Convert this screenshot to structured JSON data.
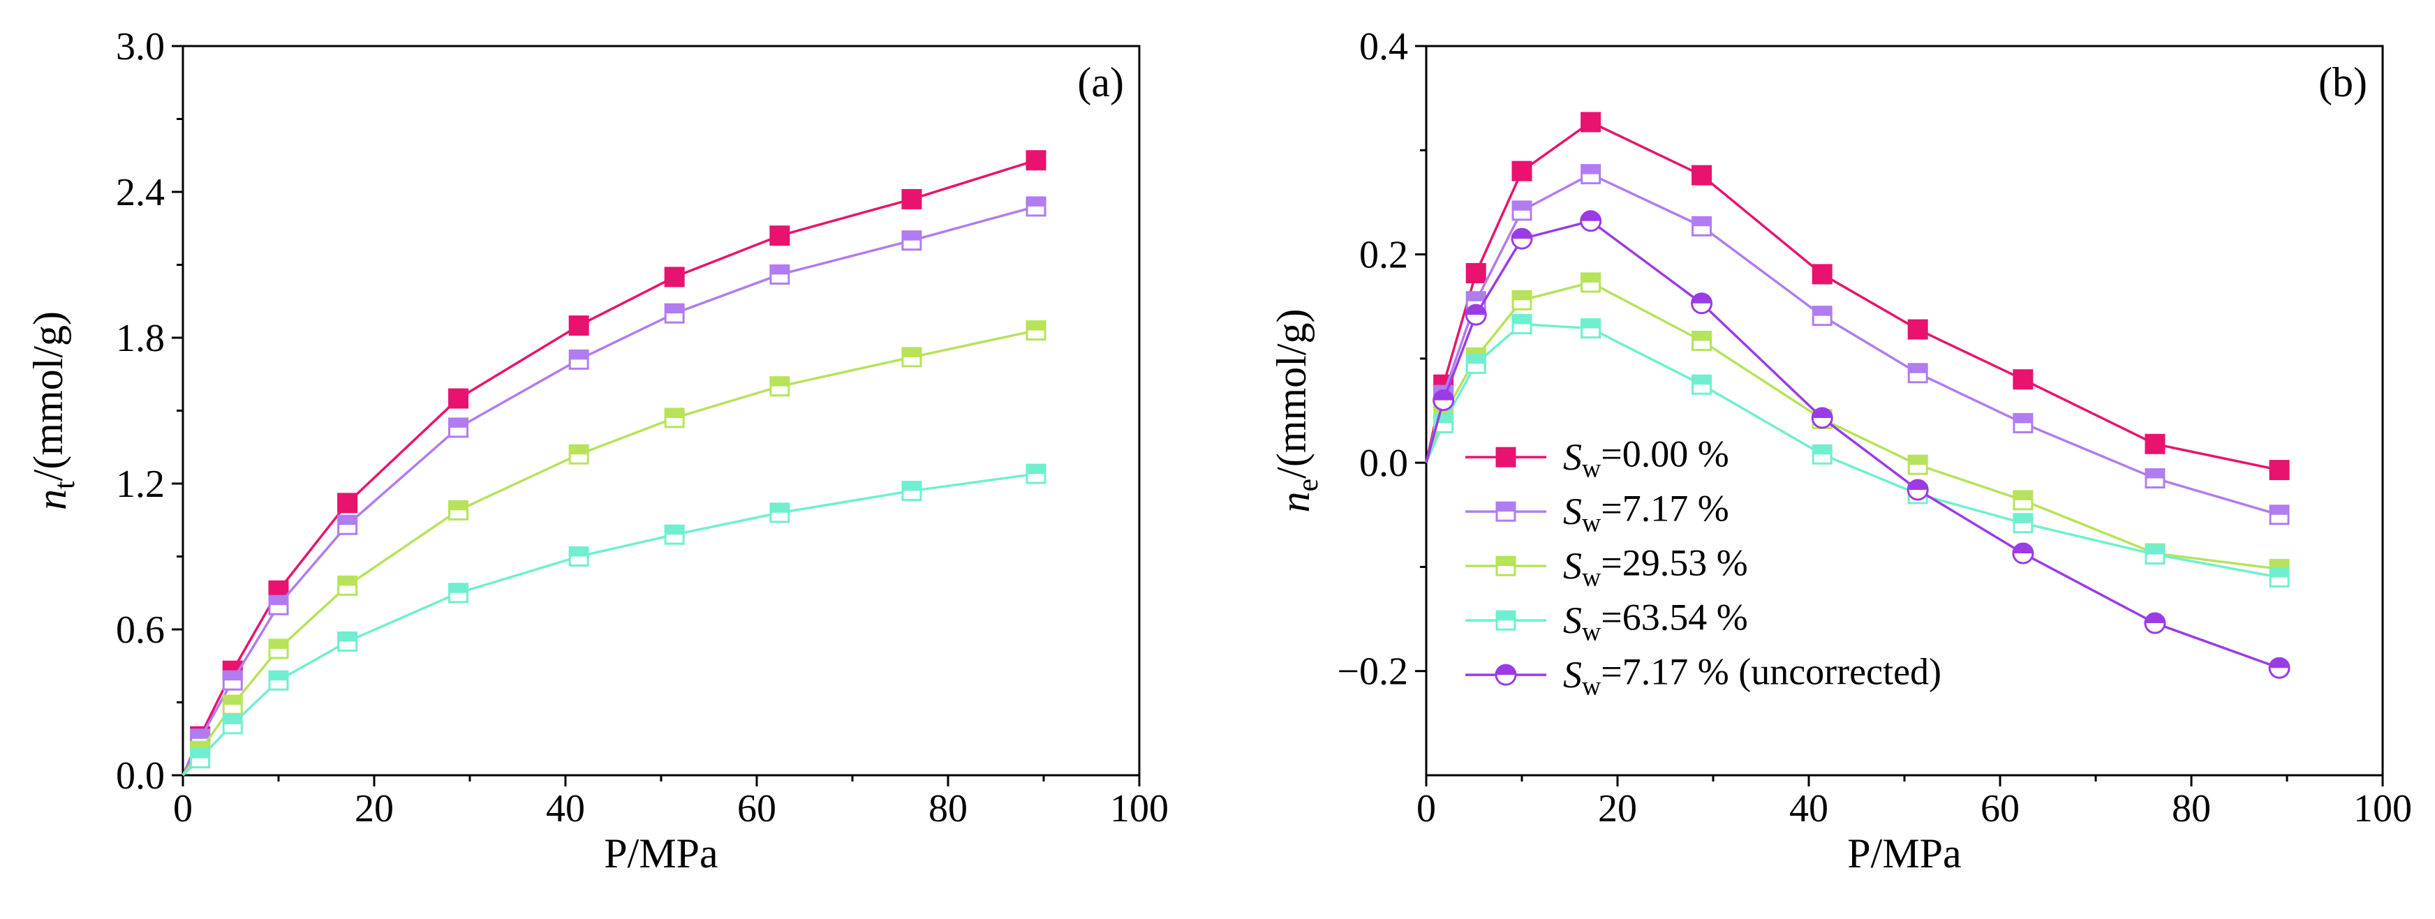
{
  "colors": {
    "s0": "#e8136e",
    "s717": "#b07cf0",
    "s2953": "#b6e35a",
    "s6354": "#6fefd0",
    "uncorr": "#9b3be6"
  },
  "chart_data": [
    {
      "type": "line",
      "panel_label": "(a)",
      "xlabel": "P/MPa",
      "ylabel_main": "n",
      "ylabel_sub": "t",
      "ylabel_rest": "/(mmol/g)",
      "xlim": [
        0,
        100
      ],
      "ylim": [
        0,
        3.0
      ],
      "xticks": [
        0,
        20,
        40,
        60,
        80,
        100
      ],
      "xtick_labels": [
        "0",
        "20",
        "40",
        "60",
        "80",
        "100"
      ],
      "yticks": [
        0,
        0.6,
        1.2,
        1.8,
        2.4,
        3.0
      ],
      "ytick_labels": [
        "0.0",
        "0.6",
        "1.2",
        "1.8",
        "2.4",
        "3.0"
      ],
      "x": [
        1.8,
        5.2,
        10.0,
        17.2,
        28.8,
        41.4,
        51.4,
        62.4,
        76.2,
        89.2
      ],
      "series": [
        {
          "key": "s0",
          "name": "Sw=0.00 %",
          "marker": "filled",
          "values": [
            0.16,
            0.43,
            0.76,
            1.12,
            1.55,
            1.85,
            2.05,
            2.22,
            2.37,
            2.53
          ]
        },
        {
          "key": "s717",
          "name": "Sw=7.17 %",
          "marker": "half",
          "values": [
            0.15,
            0.39,
            0.7,
            1.03,
            1.43,
            1.71,
            1.9,
            2.06,
            2.2,
            2.34
          ]
        },
        {
          "key": "s2953",
          "name": "Sw=29.53 %",
          "marker": "half",
          "values": [
            0.1,
            0.29,
            0.52,
            0.78,
            1.09,
            1.32,
            1.47,
            1.6,
            1.72,
            1.83
          ]
        },
        {
          "key": "s6354",
          "name": "Sw=63.54 %",
          "marker": "half",
          "values": [
            0.07,
            0.21,
            0.39,
            0.55,
            0.75,
            0.9,
            0.99,
            1.08,
            1.17,
            1.24
          ]
        }
      ]
    },
    {
      "type": "line",
      "panel_label": "(b)",
      "xlabel": "P/MPa",
      "ylabel_main": "n",
      "ylabel_sub": "e",
      "ylabel_rest": "/(mmol/g)",
      "xlim": [
        0,
        100
      ],
      "ylim": [
        -0.3,
        0.4
      ],
      "xticks": [
        0,
        20,
        40,
        60,
        80,
        100
      ],
      "xtick_labels": [
        "0",
        "20",
        "40",
        "60",
        "80",
        "100"
      ],
      "yticks": [
        -0.2,
        0.0,
        0.2,
        0.4
      ],
      "ytick_labels": [
        "−0.2",
        "0.0",
        "0.2",
        "0.4"
      ],
      "x": [
        1.8,
        5.2,
        10.0,
        17.2,
        28.8,
        41.4,
        51.4,
        62.4,
        76.2,
        89.2
      ],
      "legend_position": "bottom-left",
      "series": [
        {
          "key": "s0",
          "legend_main": "S",
          "legend_sub": "w",
          "legend_rest": "=0.00 %",
          "marker": "filled",
          "values": [
            0.075,
            0.182,
            0.28,
            0.327,
            0.276,
            0.181,
            0.128,
            0.08,
            0.018,
            -0.007
          ]
        },
        {
          "key": "s717",
          "legend_main": "S",
          "legend_sub": "w",
          "legend_rest": "=7.17 %",
          "marker": "half",
          "values": [
            0.065,
            0.155,
            0.242,
            0.277,
            0.227,
            0.141,
            0.086,
            0.038,
            -0.015,
            -0.05
          ]
        },
        {
          "key": "s2953",
          "legend_main": "S",
          "legend_sub": "w",
          "legend_rest": "=29.53 %",
          "marker": "half",
          "values": [
            0.045,
            0.101,
            0.156,
            0.173,
            0.117,
            0.042,
            -0.002,
            -0.036,
            -0.087,
            -0.102
          ]
        },
        {
          "key": "s6354",
          "legend_main": "S",
          "legend_sub": "w",
          "legend_rest": "=63.54 %",
          "marker": "half",
          "values": [
            0.038,
            0.095,
            0.133,
            0.129,
            0.075,
            0.008,
            -0.03,
            -0.058,
            -0.088,
            -0.11
          ]
        },
        {
          "key": "uncorr",
          "legend_main": "S",
          "legend_sub": "w",
          "legend_rest": "=7.17 % (uncorrected)",
          "marker": "circle",
          "values": [
            0.06,
            0.142,
            0.215,
            0.232,
            0.153,
            0.043,
            -0.026,
            -0.087,
            -0.154,
            -0.197
          ]
        }
      ]
    }
  ]
}
